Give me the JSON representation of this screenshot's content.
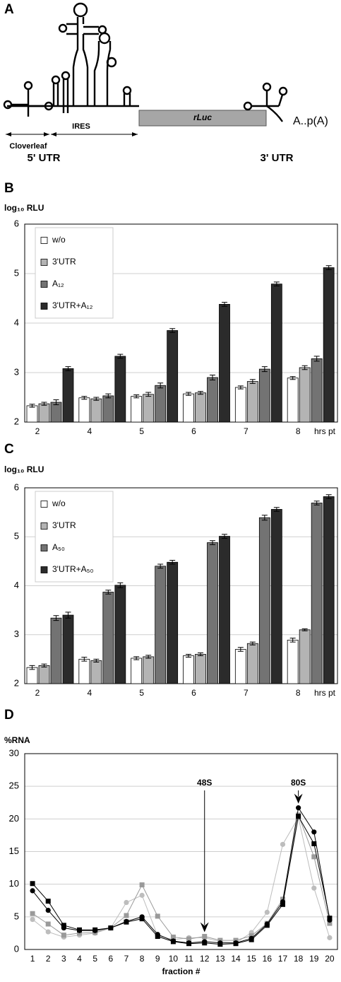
{
  "diagram": {
    "panel": "A",
    "gene": "rLuc",
    "tail": "A..p(A)",
    "cloverleaf": "Cloverleaf",
    "ires": "IRES",
    "utr5": "5' UTR",
    "utr3": "3' UTR"
  },
  "chart_data": [
    {
      "type": "bar",
      "panel": "B",
      "ylabel": "log₁₀ RLU",
      "xlabel": "hrs pt",
      "categories": [
        "2",
        "4",
        "5",
        "6",
        "7",
        "8"
      ],
      "ylim": [
        2,
        6
      ],
      "yticks": [
        2,
        3,
        4,
        5,
        6
      ],
      "grid": true,
      "legend": "upper left",
      "series": [
        {
          "name": "w/o",
          "color": "#ffffff",
          "values": [
            2.33,
            2.49,
            2.52,
            2.57,
            2.7,
            2.89
          ],
          "errors": [
            0.03,
            0.03,
            0.03,
            0.03,
            0.03,
            0.03
          ]
        },
        {
          "name": "3'UTR",
          "color": "#b4b4b4",
          "values": [
            2.37,
            2.47,
            2.56,
            2.59,
            2.82,
            3.1
          ],
          "errors": [
            0.03,
            0.03,
            0.04,
            0.03,
            0.04,
            0.04
          ]
        },
        {
          "name": "A₁₂",
          "color": "#737373",
          "values": [
            2.4,
            2.53,
            2.74,
            2.9,
            3.07,
            3.28
          ],
          "errors": [
            0.05,
            0.04,
            0.05,
            0.05,
            0.05,
            0.05
          ]
        },
        {
          "name": "3'UTR+A₁₂",
          "color": "#2b2b2b",
          "values": [
            3.08,
            3.33,
            3.85,
            4.38,
            4.79,
            5.12
          ],
          "errors": [
            0.04,
            0.04,
            0.04,
            0.04,
            0.04,
            0.04
          ]
        }
      ]
    },
    {
      "type": "bar",
      "panel": "C",
      "ylabel": "log₁₀ RLU",
      "xlabel": "hrs pt",
      "categories": [
        "2",
        "4",
        "5",
        "6",
        "7",
        "8"
      ],
      "ylim": [
        2,
        6
      ],
      "yticks": [
        2,
        3,
        4,
        5,
        6
      ],
      "grid": true,
      "legend": "upper left",
      "series": [
        {
          "name": "w/o",
          "color": "#ffffff",
          "values": [
            2.33,
            2.5,
            2.52,
            2.57,
            2.7,
            2.89
          ],
          "errors": [
            0.04,
            0.04,
            0.03,
            0.03,
            0.04,
            0.04
          ]
        },
        {
          "name": "3'UTR",
          "color": "#b4b4b4",
          "values": [
            2.37,
            2.47,
            2.55,
            2.6,
            2.82,
            3.1
          ],
          "errors": [
            0.03,
            0.03,
            0.03,
            0.03,
            0.03,
            0.02
          ]
        },
        {
          "name": "A₅₀",
          "color": "#737373",
          "values": [
            3.34,
            3.87,
            4.4,
            4.88,
            5.39,
            5.69
          ],
          "errors": [
            0.05,
            0.04,
            0.04,
            0.04,
            0.05,
            0.04
          ]
        },
        {
          "name": "3'UTR+A₅₀",
          "color": "#2b2b2b",
          "values": [
            3.4,
            4.01,
            4.48,
            5.01,
            5.56,
            5.82
          ],
          "errors": [
            0.06,
            0.05,
            0.04,
            0.04,
            0.04,
            0.04
          ]
        }
      ]
    },
    {
      "type": "line",
      "panel": "D",
      "ylabel": "%RNA",
      "xlabel": "fraction #",
      "x": [
        1,
        2,
        3,
        4,
        5,
        6,
        7,
        8,
        9,
        10,
        11,
        12,
        13,
        14,
        15,
        16,
        17,
        18,
        19,
        20
      ],
      "xlim": [
        0.5,
        20.5
      ],
      "xticks": [
        1,
        2,
        3,
        4,
        5,
        6,
        7,
        8,
        9,
        10,
        11,
        12,
        13,
        14,
        15,
        16,
        17,
        18,
        19,
        20
      ],
      "ylim": [
        0,
        30
      ],
      "yticks": [
        0,
        5,
        10,
        15,
        20,
        25,
        30
      ],
      "grid": true,
      "annotations": [
        {
          "text": "48S",
          "x": 12
        },
        {
          "text": "80S",
          "x": 18
        }
      ],
      "series": [
        {
          "color": "#bdbdbd",
          "marker": "circle",
          "values": [
            4.6,
            2.7,
            1.9,
            2.2,
            2.5,
            3.3,
            7.2,
            8.3,
            2.1,
            1.5,
            1.8,
            1.8,
            1.2,
            1.0,
            2.6,
            5.7,
            16.1,
            20.2,
            9.4,
            1.8
          ]
        },
        {
          "color": "#9a9a9a",
          "marker": "square",
          "values": [
            5.5,
            3.9,
            2.2,
            2.5,
            2.6,
            3.3,
            5.2,
            9.9,
            5.1,
            1.9,
            1.6,
            2.0,
            1.4,
            1.4,
            2.1,
            4.0,
            7.7,
            20.6,
            14.2,
            4.0
          ]
        },
        {
          "color": "#000000",
          "marker": "circle",
          "values": [
            9.0,
            6.0,
            3.3,
            2.9,
            2.9,
            3.3,
            4.3,
            5.0,
            2.3,
            1.3,
            1.0,
            1.2,
            1.0,
            1.0,
            1.7,
            3.9,
            7.3,
            21.7,
            18.0,
            4.5
          ]
        },
        {
          "color": "#000000",
          "marker": "square",
          "values": [
            10.1,
            7.4,
            3.7,
            3.0,
            3.0,
            3.3,
            4.2,
            4.7,
            2.0,
            1.2,
            0.9,
            1.0,
            0.8,
            0.9,
            1.5,
            3.7,
            6.9,
            20.4,
            16.2,
            4.8
          ]
        }
      ]
    }
  ]
}
